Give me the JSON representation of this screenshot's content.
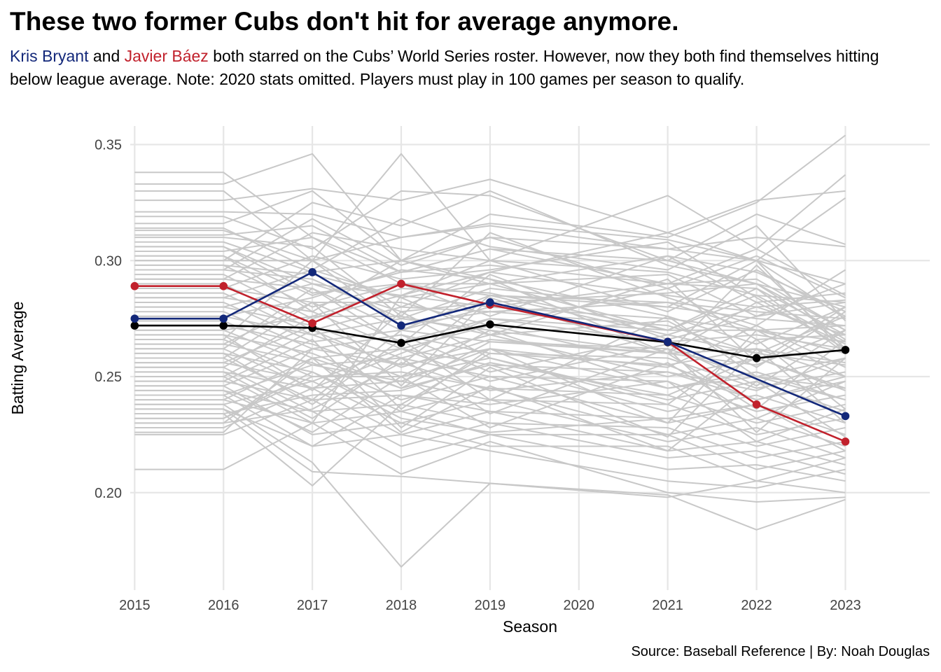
{
  "title": "These two former Cubs don't hit for average anymore.",
  "subtitle": {
    "bryant_name": "Kris Bryant",
    "and": " and ",
    "baez_name": "Javier Báez",
    "rest": " both starred on the Cubs’ World Series roster. However, now they both find themselves hitting below league average. Note: 2020 stats omitted. Players must play in 100 games per season to qualify."
  },
  "caption": "Source: Baseball Reference | By: Noah Douglas",
  "colors": {
    "bryant": "#13287a",
    "baez": "#c1212c",
    "league": "#000000",
    "others": "#c8c8c8",
    "grid": "#e6e6e6"
  },
  "chart_data": {
    "type": "line",
    "xlabel": "Season",
    "ylabel": "Batting Average",
    "x_ticks": [
      "2015",
      "2016",
      "2017",
      "2018",
      "2019",
      "2020",
      "2021",
      "2022",
      "2023"
    ],
    "y_ticks": [
      "0.20",
      "0.25",
      "0.30",
      "0.35"
    ],
    "xlim": [
      2014.95,
      2023.95
    ],
    "ylim": [
      0.158,
      0.358
    ],
    "grid": true,
    "legend": "none",
    "series": [
      {
        "name": "Kris Bryant",
        "color": "#13287a",
        "points": [
          [
            2015,
            0.275
          ],
          [
            2016,
            0.275
          ],
          [
            2017,
            0.295
          ],
          [
            2018,
            0.272
          ],
          [
            2019,
            0.282
          ],
          [
            2021,
            0.265
          ],
          [
            2023,
            0.233
          ]
        ]
      },
      {
        "name": "Javier Báez",
        "color": "#c1212c",
        "points": [
          [
            2015,
            0.289
          ],
          [
            2016,
            0.289
          ],
          [
            2017,
            0.273
          ],
          [
            2018,
            0.29
          ],
          [
            2019,
            0.281
          ],
          [
            2021,
            0.265
          ],
          [
            2022,
            0.238
          ],
          [
            2023,
            0.222
          ]
        ]
      },
      {
        "color": "#000000",
        "points": [
          [
            2015,
            0.272
          ],
          [
            2016,
            0.272
          ],
          [
            2017,
            0.271
          ],
          [
            2018,
            0.2645
          ],
          [
            2019,
            0.2725
          ],
          [
            2021,
            0.2648
          ],
          [
            2022,
            0.258
          ],
          [
            2023,
            0.2615
          ]
        ]
      }
    ],
    "other_players": {
      "color": "#c8c8c8",
      "seasons": [
        2015,
        2016,
        2017,
        2018,
        2019,
        2021,
        2022,
        2023
      ],
      "lines": [
        [
          0.338,
          0.338,
          0.31,
          0.295,
          0.305,
          0.3,
          0.29,
          0.28
        ],
        [
          0.333,
          0.333,
          0.346,
          0.3,
          0.32,
          0.31,
          0.325,
          0.354
        ],
        [
          0.33,
          0.33,
          0.3,
          0.346,
          0.3,
          0.328,
          0.305,
          0.337
        ],
        [
          0.326,
          0.326,
          0.331,
          0.326,
          0.335,
          0.312,
          0.326,
          0.33
        ],
        [
          0.321,
          0.321,
          0.32,
          0.31,
          0.315,
          0.305,
          0.3,
          0.327
        ],
        [
          0.319,
          0.319,
          0.305,
          0.33,
          0.328,
          0.3,
          0.32,
          0.307
        ],
        [
          0.316,
          0.316,
          0.33,
          0.3,
          0.31,
          0.305,
          0.31,
          0.306
        ],
        [
          0.313,
          0.313,
          0.3,
          0.31,
          0.316,
          0.309,
          0.3,
          0.29
        ],
        [
          0.311,
          0.311,
          0.315,
          0.295,
          0.305,
          0.29,
          0.305,
          0.285
        ],
        [
          0.308,
          0.308,
          0.295,
          0.3,
          0.29,
          0.302,
          0.295,
          0.278
        ],
        [
          0.306,
          0.306,
          0.29,
          0.285,
          0.3,
          0.295,
          0.285,
          0.282
        ],
        [
          0.304,
          0.304,
          0.31,
          0.29,
          0.285,
          0.28,
          0.3,
          0.275
        ],
        [
          0.302,
          0.302,
          0.285,
          0.295,
          0.298,
          0.29,
          0.292,
          0.27
        ],
        [
          0.3,
          0.3,
          0.3,
          0.28,
          0.295,
          0.285,
          0.28,
          0.283
        ],
        [
          0.298,
          0.298,
          0.28,
          0.29,
          0.29,
          0.27,
          0.285,
          0.265
        ],
        [
          0.296,
          0.296,
          0.292,
          0.275,
          0.288,
          0.28,
          0.275,
          0.272
        ],
        [
          0.294,
          0.294,
          0.275,
          0.285,
          0.28,
          0.275,
          0.27,
          0.26
        ],
        [
          0.292,
          0.292,
          0.288,
          0.27,
          0.285,
          0.268,
          0.28,
          0.268
        ],
        [
          0.29,
          0.29,
          0.27,
          0.28,
          0.278,
          0.272,
          0.26,
          0.255
        ],
        [
          0.288,
          0.288,
          0.282,
          0.265,
          0.275,
          0.265,
          0.268,
          0.262
        ],
        [
          0.286,
          0.286,
          0.268,
          0.275,
          0.27,
          0.26,
          0.255,
          0.27
        ],
        [
          0.284,
          0.284,
          0.278,
          0.262,
          0.272,
          0.255,
          0.262,
          0.25
        ],
        [
          0.282,
          0.282,
          0.265,
          0.27,
          0.265,
          0.262,
          0.25,
          0.258
        ],
        [
          0.28,
          0.28,
          0.272,
          0.258,
          0.268,
          0.25,
          0.258,
          0.245
        ],
        [
          0.278,
          0.278,
          0.262,
          0.268,
          0.26,
          0.258,
          0.245,
          0.252
        ],
        [
          0.276,
          0.276,
          0.268,
          0.255,
          0.262,
          0.245,
          0.252,
          0.24
        ],
        [
          0.274,
          0.274,
          0.258,
          0.262,
          0.255,
          0.252,
          0.24,
          0.248
        ],
        [
          0.272,
          0.272,
          0.264,
          0.25,
          0.258,
          0.24,
          0.248,
          0.235
        ],
        [
          0.27,
          0.27,
          0.255,
          0.258,
          0.25,
          0.248,
          0.235,
          0.242
        ],
        [
          0.268,
          0.268,
          0.26,
          0.245,
          0.255,
          0.235,
          0.242,
          0.23
        ],
        [
          0.266,
          0.266,
          0.25,
          0.252,
          0.245,
          0.242,
          0.23,
          0.238
        ],
        [
          0.264,
          0.264,
          0.256,
          0.24,
          0.25,
          0.23,
          0.238,
          0.225
        ],
        [
          0.262,
          0.262,
          0.245,
          0.248,
          0.24,
          0.238,
          0.225,
          0.232
        ],
        [
          0.26,
          0.26,
          0.252,
          0.235,
          0.245,
          0.225,
          0.232,
          0.22
        ],
        [
          0.258,
          0.258,
          0.24,
          0.242,
          0.235,
          0.232,
          0.22,
          0.228
        ],
        [
          0.256,
          0.256,
          0.248,
          0.23,
          0.24,
          0.222,
          0.228,
          0.215
        ],
        [
          0.254,
          0.254,
          0.235,
          0.238,
          0.23,
          0.228,
          0.215,
          0.222
        ],
        [
          0.252,
          0.252,
          0.245,
          0.225,
          0.235,
          0.218,
          0.222,
          0.212
        ],
        [
          0.25,
          0.25,
          0.23,
          0.235,
          0.225,
          0.225,
          0.21,
          0.218
        ],
        [
          0.248,
          0.248,
          0.24,
          0.22,
          0.23,
          0.215,
          0.218,
          0.208
        ],
        [
          0.246,
          0.246,
          0.225,
          0.23,
          0.22,
          0.22,
          0.205,
          0.215
        ],
        [
          0.244,
          0.244,
          0.235,
          0.215,
          0.225,
          0.21,
          0.212,
          0.205
        ],
        [
          0.242,
          0.242,
          0.22,
          0.225,
          0.218,
          0.205,
          0.202,
          0.21
        ],
        [
          0.24,
          0.24,
          0.23,
          0.208,
          0.222,
          0.2,
          0.196,
          0.198
        ],
        [
          0.238,
          0.238,
          0.213,
          0.168,
          0.204,
          0.199,
          0.184,
          0.197
        ],
        [
          0.236,
          0.236,
          0.209,
          0.207,
          0.204,
          0.198,
          0.205,
          0.2
        ],
        [
          0.234,
          0.234,
          0.203,
          0.238,
          0.26,
          0.255,
          0.24,
          0.25
        ],
        [
          0.232,
          0.232,
          0.25,
          0.25,
          0.27,
          0.245,
          0.25,
          0.245
        ],
        [
          0.23,
          0.23,
          0.258,
          0.245,
          0.265,
          0.26,
          0.262,
          0.256
        ],
        [
          0.228,
          0.228,
          0.245,
          0.26,
          0.275,
          0.27,
          0.27,
          0.265
        ],
        [
          0.226,
          0.226,
          0.262,
          0.255,
          0.285,
          0.282,
          0.278,
          0.275
        ],
        [
          0.225,
          0.225,
          0.24,
          0.27,
          0.28,
          0.29,
          0.288,
          0.268
        ],
        [
          0.21,
          0.21,
          0.23,
          0.285,
          0.295,
          0.312,
          0.3,
          0.26
        ],
        [
          0.3,
          0.3,
          0.325,
          0.315,
          0.33,
          0.298,
          0.29,
          0.27
        ],
        [
          0.296,
          0.296,
          0.318,
          0.298,
          0.31,
          0.288,
          0.302,
          0.284
        ],
        [
          0.292,
          0.292,
          0.312,
          0.305,
          0.3,
          0.278,
          0.296,
          0.276
        ],
        [
          0.288,
          0.288,
          0.302,
          0.292,
          0.296,
          0.308,
          0.284,
          0.262
        ],
        [
          0.284,
          0.284,
          0.296,
          0.284,
          0.29,
          0.294,
          0.276,
          0.29
        ],
        [
          0.28,
          0.28,
          0.29,
          0.278,
          0.282,
          0.286,
          0.29,
          0.266
        ],
        [
          0.276,
          0.276,
          0.284,
          0.296,
          0.292,
          0.276,
          0.264,
          0.28
        ],
        [
          0.27,
          0.27,
          0.276,
          0.288,
          0.286,
          0.27,
          0.288,
          0.26
        ],
        [
          0.266,
          0.266,
          0.3,
          0.272,
          0.278,
          0.282,
          0.27,
          0.272
        ],
        [
          0.262,
          0.262,
          0.288,
          0.264,
          0.294,
          0.266,
          0.276,
          0.282
        ],
        [
          0.258,
          0.258,
          0.282,
          0.282,
          0.272,
          0.288,
          0.266,
          0.268
        ],
        [
          0.254,
          0.254,
          0.276,
          0.276,
          0.268,
          0.274,
          0.254,
          0.278
        ],
        [
          0.25,
          0.25,
          0.27,
          0.254,
          0.266,
          0.26,
          0.282,
          0.264
        ],
        [
          0.246,
          0.246,
          0.262,
          0.268,
          0.252,
          0.268,
          0.26,
          0.276
        ],
        [
          0.242,
          0.242,
          0.255,
          0.248,
          0.262,
          0.254,
          0.272,
          0.254
        ],
        [
          0.238,
          0.238,
          0.248,
          0.262,
          0.248,
          0.264,
          0.246,
          0.27
        ],
        [
          0.234,
          0.234,
          0.242,
          0.244,
          0.256,
          0.242,
          0.258,
          0.244
        ],
        [
          0.23,
          0.23,
          0.236,
          0.256,
          0.244,
          0.252,
          0.244,
          0.258
        ],
        [
          0.314,
          0.314,
          0.296,
          0.318,
          0.306,
          0.296,
          0.315,
          0.274
        ],
        [
          0.31,
          0.31,
          0.306,
          0.276,
          0.312,
          0.284,
          0.272,
          0.296
        ],
        [
          0.306,
          0.306,
          0.286,
          0.29,
          0.276,
          0.302,
          0.282,
          0.286
        ],
        [
          0.302,
          0.302,
          0.278,
          0.3,
          0.292,
          0.26,
          0.298,
          0.262
        ],
        [
          0.298,
          0.298,
          0.294,
          0.284,
          0.268,
          0.292,
          0.256,
          0.28
        ],
        [
          0.268,
          0.268,
          0.244,
          0.278,
          0.258,
          0.238,
          0.266,
          0.236
        ],
        [
          0.264,
          0.264,
          0.282,
          0.246,
          0.284,
          0.26,
          0.236,
          0.266
        ],
        [
          0.26,
          0.26,
          0.238,
          0.266,
          0.24,
          0.276,
          0.25,
          0.24
        ],
        [
          0.256,
          0.256,
          0.272,
          0.236,
          0.262,
          0.23,
          0.27,
          0.25
        ],
        [
          0.252,
          0.252,
          0.232,
          0.258,
          0.234,
          0.262,
          0.226,
          0.258
        ],
        [
          0.248,
          0.248,
          0.266,
          0.228,
          0.254,
          0.224,
          0.262,
          0.23
        ],
        [
          0.244,
          0.244,
          0.226,
          0.25,
          0.228,
          0.256,
          0.232,
          0.248
        ],
        [
          0.24,
          0.24,
          0.258,
          0.226,
          0.246,
          0.218,
          0.248,
          0.224
        ],
        [
          0.236,
          0.236,
          0.22,
          0.242,
          0.238,
          0.248,
          0.222,
          0.236
        ],
        [
          0.232,
          0.232,
          0.252,
          0.232,
          0.226,
          0.232,
          0.238,
          0.218
        ]
      ]
    }
  }
}
